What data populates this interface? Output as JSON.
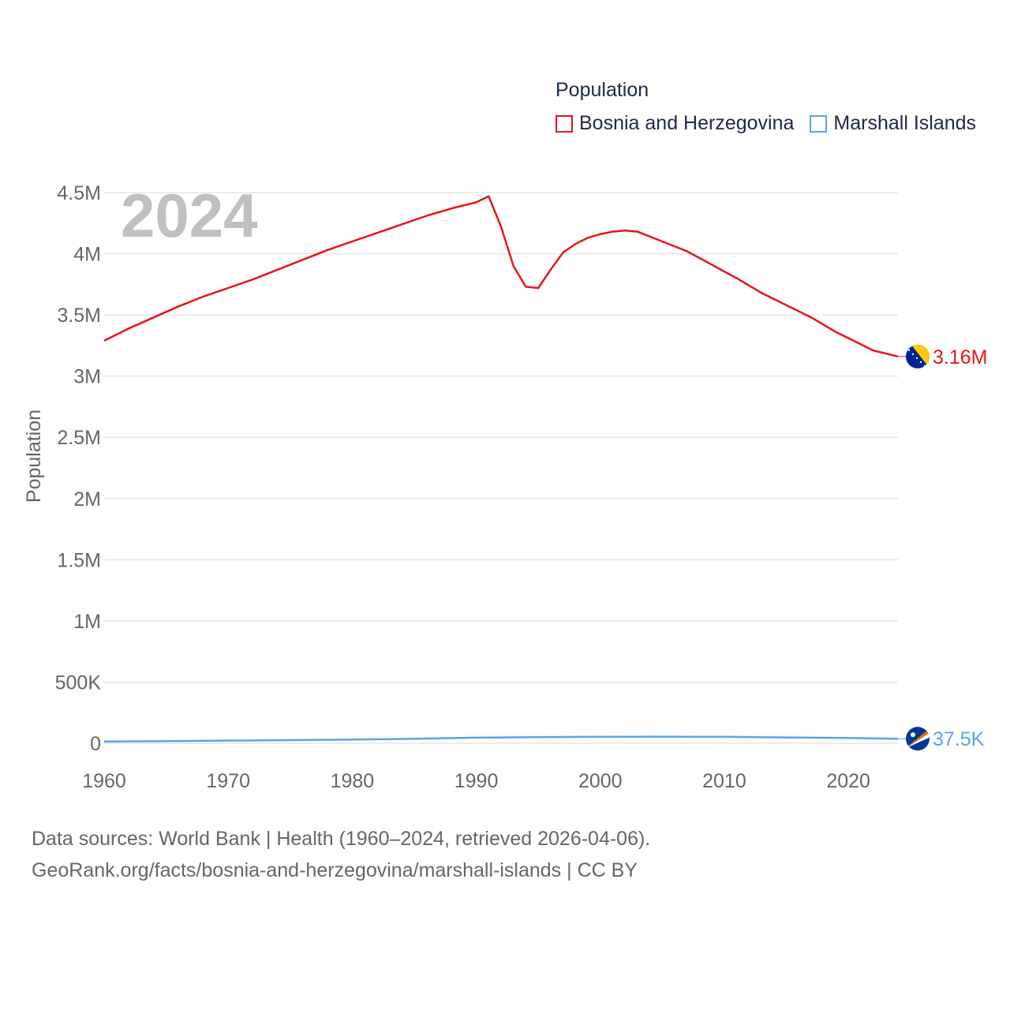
{
  "legend": {
    "title": "Population",
    "items": [
      {
        "label": "Bosnia and Herzegovina",
        "color": "#e8141b"
      },
      {
        "label": "Marshall Islands",
        "color": "#5aa4ea"
      }
    ]
  },
  "sources": {
    "line1": "Data sources: World Bank | Health (1960–2024, retrieved 2026-04-06).",
    "line2": "GeoRank.org/facts/bosnia-and-herzegovina/marshall-islands | CC BY"
  },
  "chart_data": {
    "type": "line",
    "title": "Population",
    "year_watermark": "2024",
    "xlabel": "",
    "ylabel": "Population",
    "xlim": [
      1960,
      2024
    ],
    "ylim": [
      0,
      4500000
    ],
    "x_ticks": [
      1960,
      1970,
      1980,
      1990,
      2000,
      2010,
      2020
    ],
    "x_tick_labels": [
      "1960",
      "1970",
      "1980",
      "1990",
      "2000",
      "2010",
      "2020"
    ],
    "y_ticks": [
      0,
      500000,
      1000000,
      1500000,
      2000000,
      2500000,
      3000000,
      3500000,
      4000000,
      4500000
    ],
    "y_tick_labels": [
      "0",
      "500K",
      "1M",
      "1.5M",
      "2M",
      "2.5M",
      "3M",
      "3.5M",
      "4M",
      "4.5M"
    ],
    "grid": true,
    "series": [
      {
        "name": "Bosnia and Herzegovina",
        "color": "#e8141b",
        "end_label": "3.16M",
        "flag": "bosnia-flag-icon",
        "points": [
          [
            1960,
            3290000
          ],
          [
            1962,
            3390000
          ],
          [
            1964,
            3480000
          ],
          [
            1966,
            3570000
          ],
          [
            1968,
            3650000
          ],
          [
            1970,
            3720000
          ],
          [
            1972,
            3790000
          ],
          [
            1974,
            3870000
          ],
          [
            1976,
            3950000
          ],
          [
            1978,
            4030000
          ],
          [
            1980,
            4100000
          ],
          [
            1982,
            4170000
          ],
          [
            1984,
            4240000
          ],
          [
            1986,
            4310000
          ],
          [
            1988,
            4370000
          ],
          [
            1990,
            4420000
          ],
          [
            1991,
            4470000
          ],
          [
            1992,
            4220000
          ],
          [
            1993,
            3900000
          ],
          [
            1994,
            3730000
          ],
          [
            1995,
            3720000
          ],
          [
            1996,
            3870000
          ],
          [
            1997,
            4010000
          ],
          [
            1998,
            4080000
          ],
          [
            1999,
            4130000
          ],
          [
            2000,
            4160000
          ],
          [
            2001,
            4180000
          ],
          [
            2002,
            4190000
          ],
          [
            2003,
            4180000
          ],
          [
            2005,
            4100000
          ],
          [
            2007,
            4020000
          ],
          [
            2009,
            3910000
          ],
          [
            2011,
            3800000
          ],
          [
            2013,
            3680000
          ],
          [
            2015,
            3580000
          ],
          [
            2017,
            3480000
          ],
          [
            2019,
            3360000
          ],
          [
            2021,
            3260000
          ],
          [
            2022,
            3210000
          ],
          [
            2024,
            3160000
          ]
        ]
      },
      {
        "name": "Marshall Islands",
        "color": "#5aa4ea",
        "end_label": "37.5K",
        "flag": "marshall-islands-flag-icon",
        "points": [
          [
            1960,
            15000
          ],
          [
            1965,
            18000
          ],
          [
            1970,
            22000
          ],
          [
            1975,
            26000
          ],
          [
            1980,
            31000
          ],
          [
            1985,
            37000
          ],
          [
            1990,
            46000
          ],
          [
            1995,
            51000
          ],
          [
            2000,
            53000
          ],
          [
            2005,
            54000
          ],
          [
            2010,
            53000
          ],
          [
            2015,
            48000
          ],
          [
            2020,
            43000
          ],
          [
            2024,
            37500
          ]
        ]
      }
    ]
  }
}
